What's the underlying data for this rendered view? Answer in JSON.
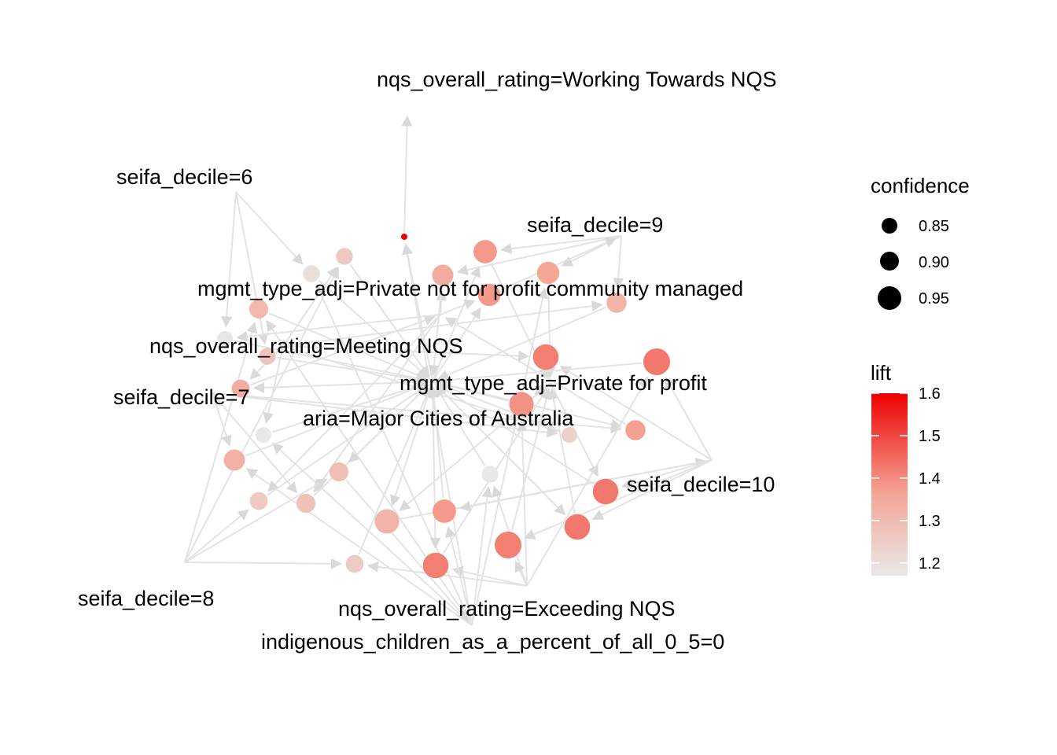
{
  "graph": {
    "type": "association-rules-network",
    "items": [
      {
        "id": "wt",
        "label": "nqs_overall_rating=Working Towards NQS"
      },
      {
        "id": "s6",
        "label": "seifa_decile=6"
      },
      {
        "id": "s9",
        "label": "seifa_decile=9"
      },
      {
        "id": "pnp",
        "label": "mgmt_type_adj=Private not for profit community managed"
      },
      {
        "id": "meet",
        "label": "nqs_overall_rating=Meeting NQS"
      },
      {
        "id": "s7",
        "label": "seifa_decile=7"
      },
      {
        "id": "pfp",
        "label": "mgmt_type_adj=Private for profit"
      },
      {
        "id": "aria",
        "label": "aria=Major Cities of Australia"
      },
      {
        "id": "s10",
        "label": "seifa_decile=10"
      },
      {
        "id": "s8",
        "label": "seifa_decile=8"
      },
      {
        "id": "exc",
        "label": "nqs_overall_rating=Exceeding NQS"
      },
      {
        "id": "ind",
        "label": "indigenous_children_as_a_percent_of_all_0_5=0"
      }
    ],
    "rules": [
      {
        "confidence": 0.82,
        "lift": 1.6,
        "from": [
          "aria",
          "ind"
        ],
        "to": "wt"
      },
      {
        "confidence": 0.92,
        "lift": 1.38,
        "from": [
          "s9",
          "aria"
        ],
        "to": "pfp"
      },
      {
        "confidence": 0.91,
        "lift": 1.36,
        "from": [
          "s9",
          "ind"
        ],
        "to": "pfp"
      },
      {
        "confidence": 0.9,
        "lift": 1.34,
        "from": [
          "s9",
          "pnp"
        ],
        "to": "aria"
      },
      {
        "confidence": 0.91,
        "lift": 1.38,
        "from": [
          "pnp",
          "aria"
        ],
        "to": "s9"
      },
      {
        "confidence": 0.89,
        "lift": 1.32,
        "from": [
          "s9",
          "meet"
        ],
        "to": "aria"
      },
      {
        "confidence": 0.86,
        "lift": 1.27,
        "from": [
          "s6",
          "meet"
        ],
        "to": "aria"
      },
      {
        "confidence": 0.87,
        "lift": 1.34,
        "from": [
          "meet",
          "aria"
        ],
        "to": "pnp"
      },
      {
        "confidence": 0.85,
        "lift": 1.24,
        "from": [
          "s7",
          "meet"
        ],
        "to": "aria"
      },
      {
        "confidence": 0.89,
        "lift": 1.37,
        "from": [
          "s7",
          "aria"
        ],
        "to": "pnp"
      },
      {
        "confidence": 0.94,
        "lift": 1.43,
        "from": [
          "s10",
          "aria"
        ],
        "to": "pfp"
      },
      {
        "confidence": 0.94,
        "lift": 1.43,
        "from": [
          "s10",
          "pfp"
        ],
        "to": "aria"
      },
      {
        "confidence": 0.93,
        "lift": 1.32,
        "from": [
          "pfp",
          "aria"
        ],
        "to": "s10"
      },
      {
        "confidence": 0.88,
        "lift": 1.31,
        "from": [
          "s8",
          "ind"
        ],
        "to": "aria"
      },
      {
        "confidence": 0.86,
        "lift": 1.26,
        "from": [
          "s8",
          "meet"
        ],
        "to": "aria"
      },
      {
        "confidence": 0.86,
        "lift": 1.2,
        "from": [
          "s6",
          "ind"
        ],
        "to": "aria"
      },
      {
        "confidence": 0.85,
        "lift": 1.18,
        "from": [
          "s6",
          "pnp"
        ],
        "to": "aria"
      },
      {
        "confidence": 0.85,
        "lift": 1.17,
        "from": [
          "meet",
          "ind"
        ],
        "to": "aria"
      },
      {
        "confidence": 0.9,
        "lift": 1.33,
        "from": [
          "s7",
          "ind"
        ],
        "to": "aria"
      },
      {
        "confidence": 0.88,
        "lift": 1.28,
        "from": [
          "s7",
          "pnp"
        ],
        "to": "aria"
      },
      {
        "confidence": 0.87,
        "lift": 1.26,
        "from": [
          "s8",
          "pnp"
        ],
        "to": "aria"
      },
      {
        "confidence": 0.88,
        "lift": 1.29,
        "from": [
          "s8",
          "aria"
        ],
        "to": "ind"
      },
      {
        "confidence": 0.87,
        "lift": 1.25,
        "from": [
          "s8",
          "exc"
        ],
        "to": "aria"
      },
      {
        "confidence": 0.86,
        "lift": 1.17,
        "from": [
          "exc",
          "ind"
        ],
        "to": "aria"
      },
      {
        "confidence": 0.94,
        "lift": 1.42,
        "from": [
          "exc",
          "aria"
        ],
        "to": "pfp"
      },
      {
        "confidence": 0.95,
        "lift": 1.42,
        "from": [
          "s10",
          "exc"
        ],
        "to": "pfp"
      },
      {
        "confidence": 0.93,
        "lift": 1.39,
        "from": [
          "exc",
          "pfp"
        ],
        "to": "aria"
      },
      {
        "confidence": 0.92,
        "lift": 1.38,
        "from": [
          "s10",
          "ind"
        ],
        "to": "aria"
      },
      {
        "confidence": 0.94,
        "lift": 1.42,
        "from": [
          "s10",
          "meet"
        ],
        "to": "pfp"
      },
      {
        "confidence": 0.95,
        "lift": 1.43,
        "from": [
          "s10",
          "exc"
        ],
        "to": "aria"
      }
    ]
  },
  "legend": {
    "size": {
      "title": "confidence",
      "entries": [
        {
          "label": "0.85",
          "value": 0.85
        },
        {
          "label": "0.90",
          "value": 0.9
        },
        {
          "label": "0.95",
          "value": 0.95
        }
      ]
    },
    "color": {
      "title": "lift",
      "min": 1.17,
      "max": 1.6,
      "ticks": [
        {
          "label": "1.6",
          "value": 1.6
        },
        {
          "label": "1.5",
          "value": 1.5
        },
        {
          "label": "1.4",
          "value": 1.4
        },
        {
          "label": "1.3",
          "value": 1.3
        },
        {
          "label": "1.2",
          "value": 1.2
        }
      ],
      "low_color": "#e8e8e8",
      "high_color": "#ee0000"
    }
  },
  "colors": {
    "edge": "#e3e3e3",
    "label": "#000000"
  }
}
